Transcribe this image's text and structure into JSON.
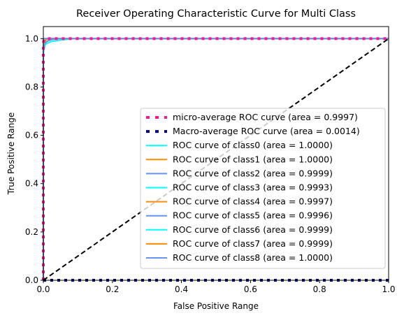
{
  "chart_data": {
    "type": "line",
    "title": "Receiver Operating Characteristic Curve for Multi Class",
    "xlabel": "False Positive Range",
    "ylabel": "True Positive Range",
    "xlim": [
      0.0,
      1.0
    ],
    "ylim": [
      0.0,
      1.05
    ],
    "xticks": [
      "0.0",
      "0.2",
      "0.4",
      "0.6",
      "0.8",
      "1.0"
    ],
    "yticks": [
      "0.0",
      "0.2",
      "0.4",
      "0.6",
      "0.8",
      "1.0"
    ],
    "grid": false,
    "legend_position": "lower right",
    "series": [
      {
        "name": "micro-average ROC curve (area = 0.9997)",
        "color": "#ff1493",
        "style": "dotted",
        "x": [
          0.0,
          0.0,
          0.0005,
          0.002,
          0.01,
          1.0
        ],
        "y": [
          0.0,
          0.95,
          0.985,
          0.995,
          1.0,
          1.0
        ]
      },
      {
        "name": "Macro-average ROC curve (area = 0.0014)",
        "color": "#000080",
        "style": "dotted",
        "x": [
          0.0,
          1.0
        ],
        "y": [
          0.0,
          0.0
        ]
      },
      {
        "name": "ROC curve of class0 (area = 1.0000)",
        "color": "#00ffff",
        "style": "solid",
        "x": [
          0.0,
          0.0,
          0.002,
          1.0
        ],
        "y": [
          0.0,
          0.99,
          1.0,
          1.0
        ]
      },
      {
        "name": "ROC curve of class1 (area = 1.0000)",
        "color": "#ff8c00",
        "style": "solid",
        "x": [
          0.0,
          0.0,
          0.002,
          1.0
        ],
        "y": [
          0.0,
          0.99,
          1.0,
          1.0
        ]
      },
      {
        "name": "ROC curve of class2 (area = 0.9999)",
        "color": "#6495ed",
        "style": "solid",
        "x": [
          0.0,
          0.0,
          0.004,
          0.012,
          1.0
        ],
        "y": [
          0.0,
          0.96,
          0.99,
          1.0,
          1.0
        ]
      },
      {
        "name": "ROC curve of class3 (area = 0.9993)",
        "color": "#00ffff",
        "style": "solid",
        "x": [
          0.0,
          0.0,
          0.005,
          0.02,
          0.05,
          0.09,
          1.0
        ],
        "y": [
          0.0,
          0.94,
          0.975,
          0.987,
          0.994,
          1.0,
          1.0
        ]
      },
      {
        "name": "ROC curve of class4 (area = 0.9997)",
        "color": "#ff8c00",
        "style": "solid",
        "x": [
          0.0,
          0.0,
          0.005,
          0.02,
          0.05,
          1.0
        ],
        "y": [
          0.0,
          0.96,
          0.985,
          0.995,
          1.0,
          1.0
        ]
      },
      {
        "name": "ROC curve of class5 (area = 0.9996)",
        "color": "#6495ed",
        "style": "solid",
        "x": [
          0.0,
          0.0,
          0.004,
          0.015,
          0.04,
          1.0
        ],
        "y": [
          0.0,
          0.95,
          0.98,
          0.993,
          1.0,
          1.0
        ]
      },
      {
        "name": "ROC curve of class6 (area = 0.9999)",
        "color": "#00ffff",
        "style": "solid",
        "x": [
          0.0,
          0.0,
          0.003,
          0.012,
          1.0
        ],
        "y": [
          0.0,
          0.97,
          0.99,
          1.0,
          1.0
        ]
      },
      {
        "name": "ROC curve of class7 (area = 0.9999)",
        "color": "#ff8c00",
        "style": "solid",
        "x": [
          0.0,
          0.0,
          0.003,
          0.012,
          1.0
        ],
        "y": [
          0.0,
          0.97,
          0.99,
          1.0,
          1.0
        ]
      },
      {
        "name": "ROC curve of class8 (area = 1.0000)",
        "color": "#6495ed",
        "style": "solid",
        "x": [
          0.0,
          0.0,
          0.002,
          1.0
        ],
        "y": [
          0.0,
          0.99,
          1.0,
          1.0
        ]
      }
    ],
    "reference_line": {
      "color": "#000000",
      "style": "dashed",
      "x": [
        0.0,
        1.0
      ],
      "y": [
        0.0,
        1.0
      ]
    }
  }
}
